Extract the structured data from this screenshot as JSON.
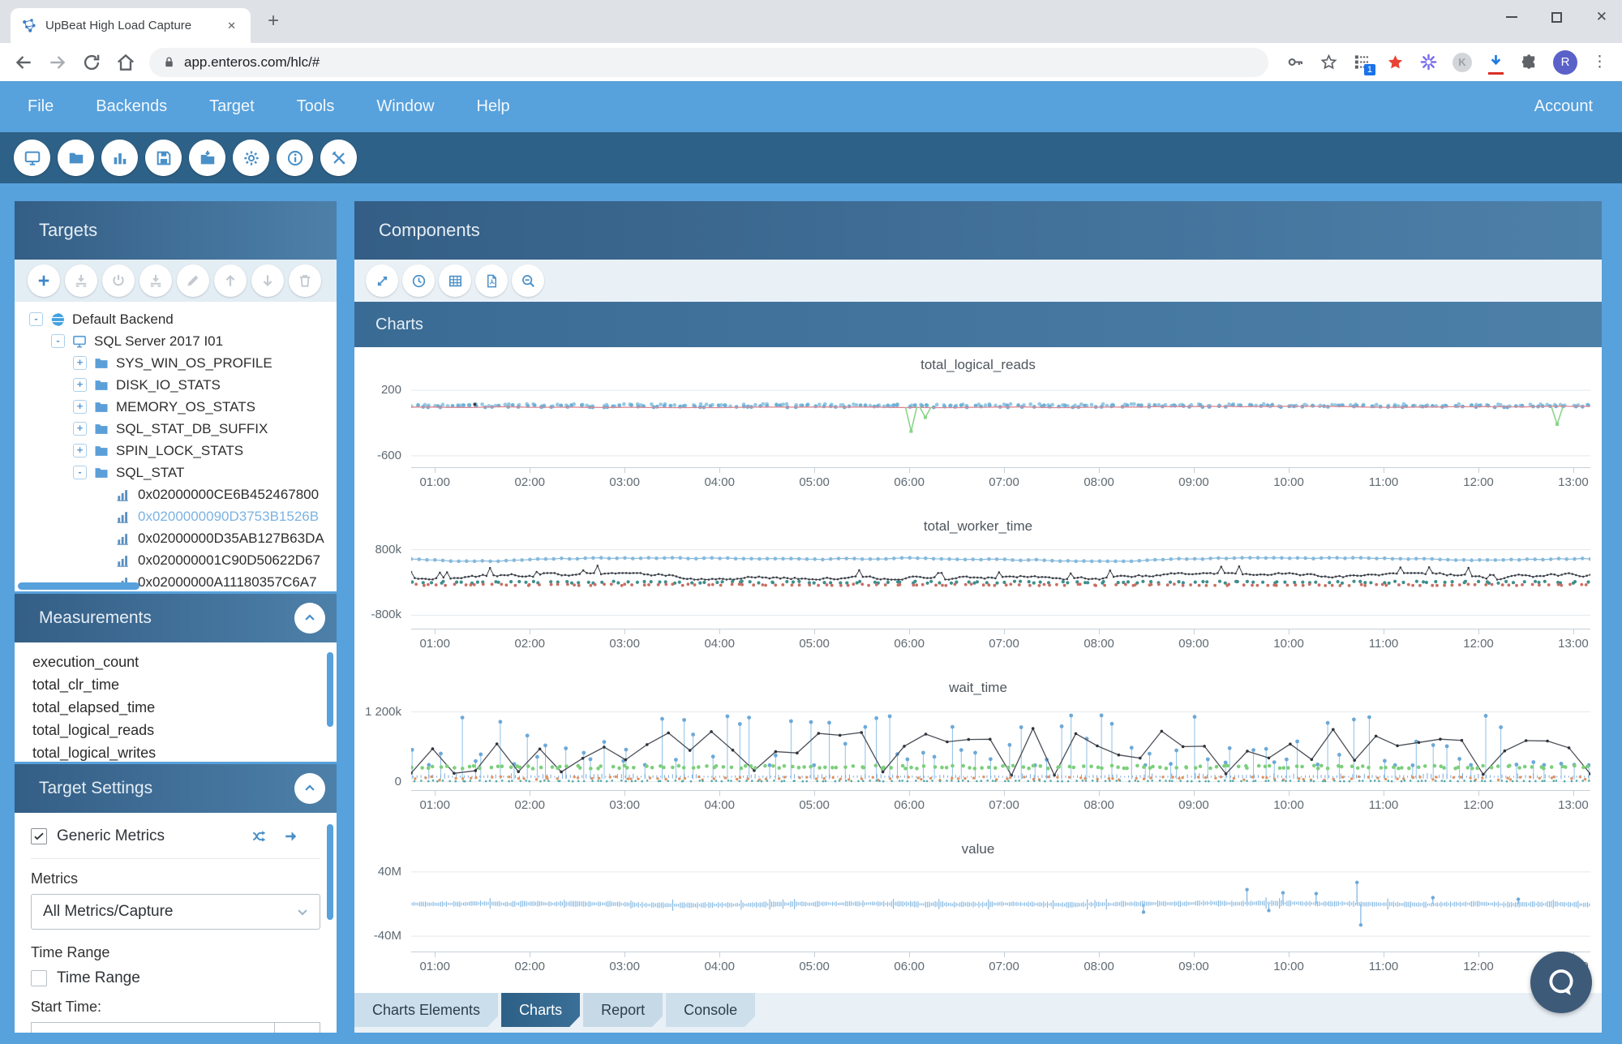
{
  "browser": {
    "tab_title": "UpBeat High Load Capture",
    "url": "app.enteros.com/hlc/#",
    "extension_badge": "1",
    "k_letter": "K",
    "avatar_letter": "R"
  },
  "menu": {
    "items": [
      "File",
      "Backends",
      "Target",
      "Tools",
      "Window",
      "Help"
    ],
    "right": "Account"
  },
  "main_toolbar_icons": [
    "monitor",
    "folder",
    "bar-chart",
    "save",
    "import",
    "gear",
    "info",
    "tools"
  ],
  "targets_panel": {
    "title": "Targets",
    "toolbar_icons": [
      "plus",
      "download-tray",
      "power",
      "download-tray",
      "pencil",
      "arrow-up",
      "arrow-down",
      "trash"
    ],
    "tree": [
      {
        "level": 0,
        "toggle": "-",
        "icon": "backend",
        "label": "Default Backend"
      },
      {
        "level": 1,
        "toggle": "-",
        "icon": "server",
        "label": "SQL Server 2017 I01"
      },
      {
        "level": 2,
        "toggle": "+",
        "icon": "folder",
        "label": "SYS_WIN_OS_PROFILE"
      },
      {
        "level": 2,
        "toggle": "+",
        "icon": "folder",
        "label": "DISK_IO_STATS"
      },
      {
        "level": 2,
        "toggle": "+",
        "icon": "folder",
        "label": "MEMORY_OS_STATS"
      },
      {
        "level": 2,
        "toggle": "+",
        "icon": "folder",
        "label": "SQL_STAT_DB_SUFFIX"
      },
      {
        "level": 2,
        "toggle": "+",
        "icon": "folder",
        "label": "SPIN_LOCK_STATS"
      },
      {
        "level": 2,
        "toggle": "-",
        "icon": "folder",
        "label": "SQL_STAT"
      },
      {
        "level": 3,
        "toggle": "",
        "icon": "chart",
        "label": "0x02000000CE6B452467800"
      },
      {
        "level": 3,
        "toggle": "",
        "icon": "chart",
        "label": "0x0200000090D3753B1526B",
        "selected": true
      },
      {
        "level": 3,
        "toggle": "",
        "icon": "chart",
        "label": "0x02000000D35AB127B63DA"
      },
      {
        "level": 3,
        "toggle": "",
        "icon": "chart",
        "label": "0x020000001C90D50622D67"
      },
      {
        "level": 3,
        "toggle": "",
        "icon": "chart",
        "label": "0x02000000A11180357C6A7"
      }
    ]
  },
  "measurements_panel": {
    "title": "Measurements",
    "items": [
      "execution_count",
      "total_clr_time",
      "total_elapsed_time",
      "total_logical_reads",
      "total_logical_writes"
    ]
  },
  "target_settings_panel": {
    "title": "Target Settings",
    "generic_metrics_label": "Generic Metrics",
    "generic_metrics_checked": true,
    "metrics_label": "Metrics",
    "metrics_value": "All Metrics/Capture",
    "time_range_label": "Time Range",
    "time_range_checkbox_label": "Time Range",
    "time_range_checked": false,
    "start_time_label": "Start Time:"
  },
  "components_panel": {
    "title": "Components",
    "toolbar_icons": [
      "expand",
      "clock",
      "table",
      "pdf",
      "zoom-out"
    ],
    "charts_header": "Charts"
  },
  "bottom_tabs": [
    {
      "label": "Charts Elements",
      "active": false
    },
    {
      "label": "Charts",
      "active": true
    },
    {
      "label": "Report",
      "active": false
    },
    {
      "label": "Console",
      "active": false
    }
  ],
  "chart_data": [
    {
      "type": "scatter",
      "title": "total_logical_reads",
      "x_labels": [
        "01:00",
        "02:00",
        "03:00",
        "04:00",
        "05:00",
        "06:00",
        "07:00",
        "08:00",
        "09:00",
        "10:00",
        "11:00",
        "12:00",
        "13:00"
      ],
      "x_hours": [
        1,
        2,
        3,
        4,
        5,
        6,
        7,
        8,
        9,
        10,
        11,
        12,
        13
      ],
      "x_range": [
        0.75,
        13.18
      ],
      "ylim": [
        -700,
        350
      ],
      "gridlines": [
        {
          "value": 200,
          "label": "200"
        },
        {
          "value": -600,
          "label": "-600"
        }
      ],
      "series": [
        {
          "name": "reads_band_light",
          "kind": "scatter-band",
          "color": "#99c9e3",
          "n": 170,
          "mean": 18,
          "amp": 14,
          "r": 2.4
        },
        {
          "name": "reads_band_dark",
          "kind": "scatter-band",
          "color": "#6fb0d6",
          "n": 170,
          "mean": 6,
          "amp": 14,
          "r": 2.4
        },
        {
          "name": "avg_line",
          "kind": "noise-line",
          "color": "#dc8793",
          "n": 160,
          "mean": -4,
          "amp": 8,
          "width": 1.3,
          "dots": 0
        },
        {
          "name": "green_dips",
          "kind": "spikes",
          "color": "#8bd48b",
          "base": -5,
          "width": 1.6,
          "events": [
            {
              "x": 6.02,
              "y": -300
            },
            {
              "x": 6.17,
              "y": -130
            },
            {
              "x": 12.83,
              "y": -215
            }
          ]
        },
        {
          "name": "outlier_dot",
          "kind": "scatter-points",
          "color": "#3a3f45",
          "r": 2,
          "points": [
            {
              "x": 1.42,
              "y": 28
            }
          ]
        }
      ]
    },
    {
      "type": "line",
      "title": "total_worker_time",
      "x_labels": [
        "01:00",
        "02:00",
        "03:00",
        "04:00",
        "05:00",
        "06:00",
        "07:00",
        "08:00",
        "09:00",
        "10:00",
        "11:00",
        "12:00",
        "13:00"
      ],
      "x_hours": [
        1,
        2,
        3,
        4,
        5,
        6,
        7,
        8,
        9,
        10,
        11,
        12,
        13
      ],
      "x_range": [
        0.75,
        13.18
      ],
      "ylim": [
        -1050000,
        1050000
      ],
      "gridlines": [
        {
          "value": 800000,
          "label": "800k"
        },
        {
          "value": -800000,
          "label": "-800k"
        }
      ],
      "series": [
        {
          "name": "worker_time_avg",
          "kind": "noise-line",
          "color": "#85b9dc",
          "n": 150,
          "mean": 560000,
          "amp": 42000,
          "width": 1.2,
          "dots": 2.3
        },
        {
          "name": "worker_time_spiky",
          "kind": "noise-line",
          "color": "#3b4049",
          "n": 330,
          "mean": 150000,
          "amp": 80000,
          "width": 1,
          "dots": 1.3,
          "spike": 0.08
        },
        {
          "name": "teal_marks",
          "kind": "scatter-band",
          "color": "#3f8e8e",
          "n": 150,
          "mean": 5000,
          "amp": 22000,
          "r": 2.1
        },
        {
          "name": "red_marks",
          "kind": "scatter-band",
          "color": "#c96f63",
          "n": 150,
          "mean": -60000,
          "amp": 18000,
          "r": 1.9
        }
      ]
    },
    {
      "type": "line",
      "title": "wait_time",
      "x_labels": [
        "01:00",
        "02:00",
        "03:00",
        "04:00",
        "05:00",
        "06:00",
        "07:00",
        "08:00",
        "09:00",
        "10:00",
        "11:00",
        "12:00",
        "13:00"
      ],
      "x_hours": [
        1,
        2,
        3,
        4,
        5,
        6,
        7,
        8,
        9,
        10,
        11,
        12,
        13
      ],
      "x_range": [
        0.75,
        13.18
      ],
      "ylim": [
        -90000,
        1390000
      ],
      "gridlines": [
        {
          "value": 1200000,
          "label": "1 200k"
        },
        {
          "value": 0,
          "label": "0"
        }
      ],
      "series": [
        {
          "name": "wait_stems",
          "kind": "stems",
          "color": "#8fc1e6",
          "dot_color": "#6da9d8",
          "n": 88,
          "base": 40000,
          "top_min": 280000,
          "top_max": 1150000,
          "r": 2.4,
          "width": 1
        },
        {
          "name": "wait_peaks_line",
          "kind": "walk-line",
          "color": "#4a4e57",
          "dot_color": "#30343b",
          "n": 56,
          "min": 90000,
          "max": 960000,
          "width": 1.3,
          "r": 1.8
        },
        {
          "name": "green_band",
          "kind": "scatter-band",
          "color": "#7ccf7c",
          "n": 175,
          "mean": 250000,
          "amp": 26000,
          "r": 2.3
        },
        {
          "name": "blue_noise",
          "kind": "wave-band",
          "color": "#7aa7d9",
          "n": 300,
          "mean": 80000,
          "amp": 70000,
          "width": 1
        },
        {
          "name": "orange_band",
          "kind": "scatter-band",
          "color": "#df9463",
          "n": 130,
          "mean": 55000,
          "amp": 30000,
          "r": 1.7
        },
        {
          "name": "teal_base",
          "kind": "scatter-band",
          "color": "#52a8a8",
          "n": 200,
          "mean": 12000,
          "amp": 7000,
          "r": 1.3
        }
      ]
    },
    {
      "type": "area",
      "title": "value",
      "x_labels": [
        "01:00",
        "02:00",
        "03:00",
        "04:00",
        "05:00",
        "06:00",
        "07:00",
        "08:00",
        "09:00",
        "10:00",
        "11:00",
        "12:00",
        "13:00"
      ],
      "x_hours": [
        1,
        2,
        3,
        4,
        5,
        6,
        7,
        8,
        9,
        10,
        11,
        12,
        13
      ],
      "x_range": [
        0.75,
        13.18
      ],
      "ylim": [
        -55000000,
        52000000
      ],
      "gridlines": [
        {
          "value": 40000000,
          "label": "40M"
        },
        {
          "value": -40000000,
          "label": "-40M"
        }
      ],
      "series": [
        {
          "name": "value_waveform",
          "kind": "wave-sym",
          "color": "#7db4e0",
          "n": 620,
          "mean": 0,
          "amp": 3800000,
          "width": 1.1
        },
        {
          "name": "value_spikes",
          "kind": "stems",
          "color": "#7db4e0",
          "dot_color": "#6da9d8",
          "from_base": 0,
          "r": 2.2,
          "width": 1.2,
          "events": [
            {
              "x": 8.47,
              "y": -10000000
            },
            {
              "x": 9.56,
              "y": 18000000
            },
            {
              "x": 9.79,
              "y": -8000000
            },
            {
              "x": 9.94,
              "y": 14000000
            },
            {
              "x": 10.29,
              "y": 13000000
            },
            {
              "x": 10.72,
              "y": 27000000
            },
            {
              "x": 10.76,
              "y": -26000000
            },
            {
              "x": 11.52,
              "y": 8000000
            },
            {
              "x": 12.42,
              "y": 6000000
            }
          ]
        }
      ]
    }
  ]
}
